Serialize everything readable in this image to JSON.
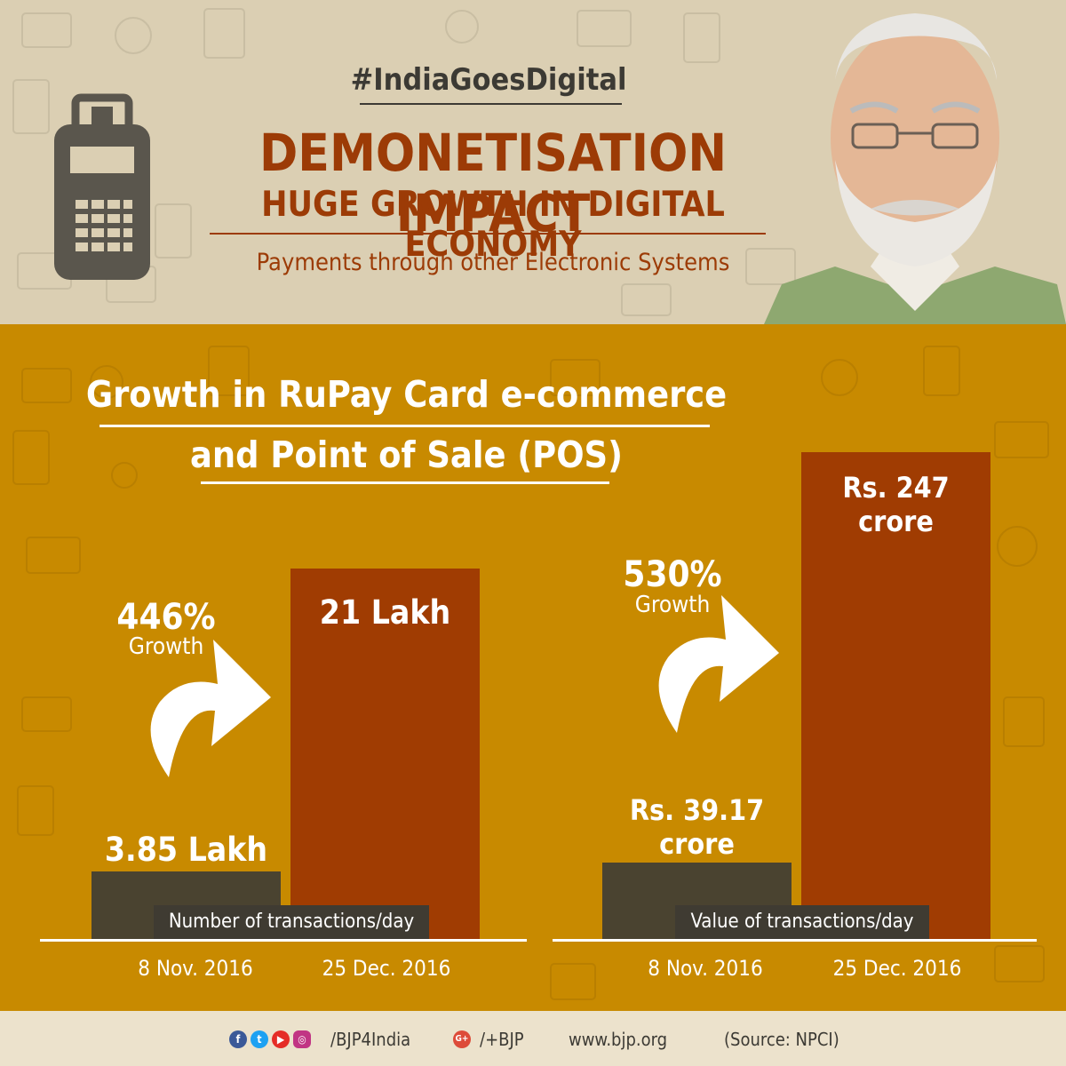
{
  "header": {
    "hashtag": "#IndiaGoesDigital",
    "title_line1": "DEMONETISATION IMPACT",
    "title_line2": "HUGE GROWTH IN DIGITAL ECONOMY",
    "subtitle": "Payments through other Electronic Systems"
  },
  "chart": {
    "title_line1": "Growth in RuPay Card e-commerce",
    "title_line2": "and Point of Sale (POS)"
  },
  "chart_data": [
    {
      "type": "bar",
      "title": "Number of transactions/day",
      "categories": [
        "8 Nov. 2016",
        "25 Dec. 2016"
      ],
      "values": [
        3.85,
        21
      ],
      "unit": "Lakh",
      "value_labels": [
        "3.85 Lakh",
        "21 Lakh"
      ],
      "growth_pct": "446%",
      "growth_word": "Growth",
      "ylim": [
        0,
        24
      ]
    },
    {
      "type": "bar",
      "title": "Value of transactions/day",
      "categories": [
        "8 Nov. 2016",
        "25 Dec. 2016"
      ],
      "values": [
        39.17,
        247
      ],
      "unit": "crore",
      "value_labels": [
        [
          "Rs. 39.17",
          "crore"
        ],
        [
          "Rs. 247",
          "crore"
        ]
      ],
      "growth_pct": "530%",
      "growth_word": "Growth",
      "ylim": [
        0,
        290
      ]
    }
  ],
  "colors": {
    "bar_before": "#4a4330",
    "bar_after": "#a03c02",
    "background": "#c88a00",
    "header_text": "#9c3b06"
  },
  "footer": {
    "social_handle": "/BJP4India",
    "gplus_handle": "/+BJP",
    "website": "www.bjp.org",
    "source": "(Source: NPCI)",
    "icons": [
      "facebook-icon",
      "twitter-icon",
      "youtube-icon",
      "instagram-icon",
      "google-plus-icon"
    ]
  }
}
